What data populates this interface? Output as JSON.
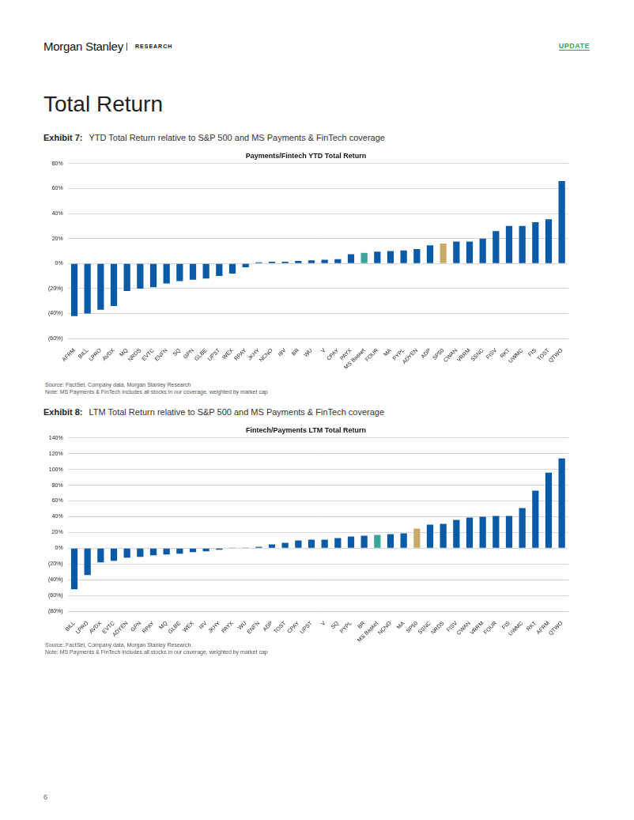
{
  "header": {
    "brand": "Morgan Stanley",
    "section": "RESEARCH",
    "tag": "UPDATE"
  },
  "heading": "Total Return",
  "exhibits": [
    {
      "label": "Exhibit 7:",
      "caption": "YTD Total Return relative to S&P 500 and MS Payments & FinTech coverage",
      "source": "Source: FactSet, Company data, Morgan Stanley Research",
      "note": "Note: MS Payments & FinTech includes all stocks in our coverage, weighted by market cap"
    },
    {
      "label": "Exhibit 8:",
      "caption": "LTM Total Return relative to S&P 500 and MS Payments & FinTech coverage",
      "source": "Source: FactSet, Company data, Morgan Stanley Research.",
      "note": "Note: MS Payments & FinTech includes all stocks in our coverage, weighted by market cap"
    }
  ],
  "chart_data": [
    {
      "type": "bar",
      "title": "Payments/Fintech YTD Total Return",
      "categories": [
        "AFRM",
        "BILL",
        "LPRO",
        "AVDX",
        "MQ",
        "NRDS",
        "EVTC",
        "ENFN",
        "SQ",
        "GPN",
        "GLBE",
        "UPST",
        "WEX",
        "RPAY",
        "JKHY",
        "NCNO",
        "IIIV",
        "BR",
        "WU",
        "V",
        "CPAY",
        "PAYX",
        "MS Basket",
        "FOUR",
        "MA",
        "PYPL",
        "ADYEN",
        "ADP",
        "SP50",
        "CWAN",
        "VRRM",
        "SSNC",
        "FISV",
        "RKT",
        "UWMC",
        "FIS",
        "TOST",
        "QTWO"
      ],
      "values": [
        -42,
        -40,
        -37,
        -34,
        -22,
        -20,
        -19,
        -16,
        -14,
        -13,
        -12,
        -10,
        -8,
        -3,
        1,
        1.5,
        1.5,
        2,
        2.5,
        3,
        3.5,
        7.5,
        8.5,
        9.5,
        10,
        10.5,
        11.5,
        14.5,
        16,
        17.5,
        17.5,
        20,
        26,
        30,
        30,
        33,
        35.5,
        66
      ],
      "colors": [
        "#0b5aa8",
        "#0b5aa8",
        "#0b5aa8",
        "#0b5aa8",
        "#0b5aa8",
        "#0b5aa8",
        "#0b5aa8",
        "#0b5aa8",
        "#0b5aa8",
        "#0b5aa8",
        "#0b5aa8",
        "#0b5aa8",
        "#0b5aa8",
        "#0b5aa8",
        "#0b5aa8",
        "#0b5aa8",
        "#0b5aa8",
        "#0b5aa8",
        "#0b5aa8",
        "#0b5aa8",
        "#0b5aa8",
        "#0b5aa8",
        "#3aa39a",
        "#0b5aa8",
        "#0b5aa8",
        "#0b5aa8",
        "#0b5aa8",
        "#0b5aa8",
        "#c9aa6c",
        "#0b5aa8",
        "#0b5aa8",
        "#0b5aa8",
        "#0b5aa8",
        "#0b5aa8",
        "#0b5aa8",
        "#0b5aa8",
        "#0b5aa8",
        "#0b5aa8"
      ],
      "ylim": [
        -60,
        80
      ],
      "yticks": [
        {
          "value": -60,
          "label": "(60%)"
        },
        {
          "value": -40,
          "label": "(40%)"
        },
        {
          "value": -20,
          "label": "(20%)"
        },
        {
          "value": 0,
          "label": "0%"
        },
        {
          "value": 20,
          "label": "20%"
        },
        {
          "value": 40,
          "label": "40%"
        },
        {
          "value": 60,
          "label": "60%"
        },
        {
          "value": 80,
          "label": "80%"
        }
      ],
      "grid": true
    },
    {
      "type": "bar",
      "title": "Fintech/Payments LTM Total Return",
      "categories": [
        "BILL",
        "LPRO",
        "AVDX",
        "EVTC",
        "ADYEN",
        "GPN",
        "RPAY",
        "MQ",
        "GLBE",
        "WEX",
        "IIIV",
        "JKHY",
        "PAYX",
        "WU",
        "ENFN",
        "ADP",
        "TOST",
        "CPAY",
        "UPST",
        "V",
        "SQ",
        "PYPL",
        "BR",
        "MS Basket",
        "NCNO",
        "MA",
        "SP50",
        "SSNC",
        "NRDS",
        "FISV",
        "CWAN",
        "VRRM",
        "FOUR",
        "FIS",
        "UWMC",
        "RKT",
        "AFRM",
        "QTWO"
      ],
      "values": [
        -52,
        -34,
        -18,
        -16,
        -12,
        -11,
        -9,
        -8,
        -7,
        -5,
        -4,
        -2,
        1,
        1,
        2,
        5,
        7,
        10,
        11,
        11,
        13,
        15,
        16,
        17,
        18,
        19,
        25,
        30,
        31,
        36,
        39,
        40,
        41,
        41,
        51,
        73,
        96,
        114
      ],
      "colors": [
        "#0b5aa8",
        "#0b5aa8",
        "#0b5aa8",
        "#0b5aa8",
        "#0b5aa8",
        "#0b5aa8",
        "#0b5aa8",
        "#0b5aa8",
        "#0b5aa8",
        "#0b5aa8",
        "#0b5aa8",
        "#0b5aa8",
        "#0b5aa8",
        "#0b5aa8",
        "#0b5aa8",
        "#0b5aa8",
        "#0b5aa8",
        "#0b5aa8",
        "#0b5aa8",
        "#0b5aa8",
        "#0b5aa8",
        "#0b5aa8",
        "#0b5aa8",
        "#3aa39a",
        "#0b5aa8",
        "#0b5aa8",
        "#c9aa6c",
        "#0b5aa8",
        "#0b5aa8",
        "#0b5aa8",
        "#0b5aa8",
        "#0b5aa8",
        "#0b5aa8",
        "#0b5aa8",
        "#0b5aa8",
        "#0b5aa8",
        "#0b5aa8",
        "#0b5aa8"
      ],
      "ylim": [
        -80,
        140
      ],
      "yticks": [
        {
          "value": -80,
          "label": "(80%)"
        },
        {
          "value": -60,
          "label": "(60%)"
        },
        {
          "value": -40,
          "label": "(40%)"
        },
        {
          "value": -20,
          "label": "(20%)"
        },
        {
          "value": 0,
          "label": "0%"
        },
        {
          "value": 20,
          "label": "20%"
        },
        {
          "value": 40,
          "label": "40%"
        },
        {
          "value": 60,
          "label": "60%"
        },
        {
          "value": 80,
          "label": "80%"
        },
        {
          "value": 100,
          "label": "100%"
        },
        {
          "value": 120,
          "label": "120%"
        },
        {
          "value": 140,
          "label": "140%"
        }
      ],
      "grid": true
    }
  ],
  "page": "6"
}
